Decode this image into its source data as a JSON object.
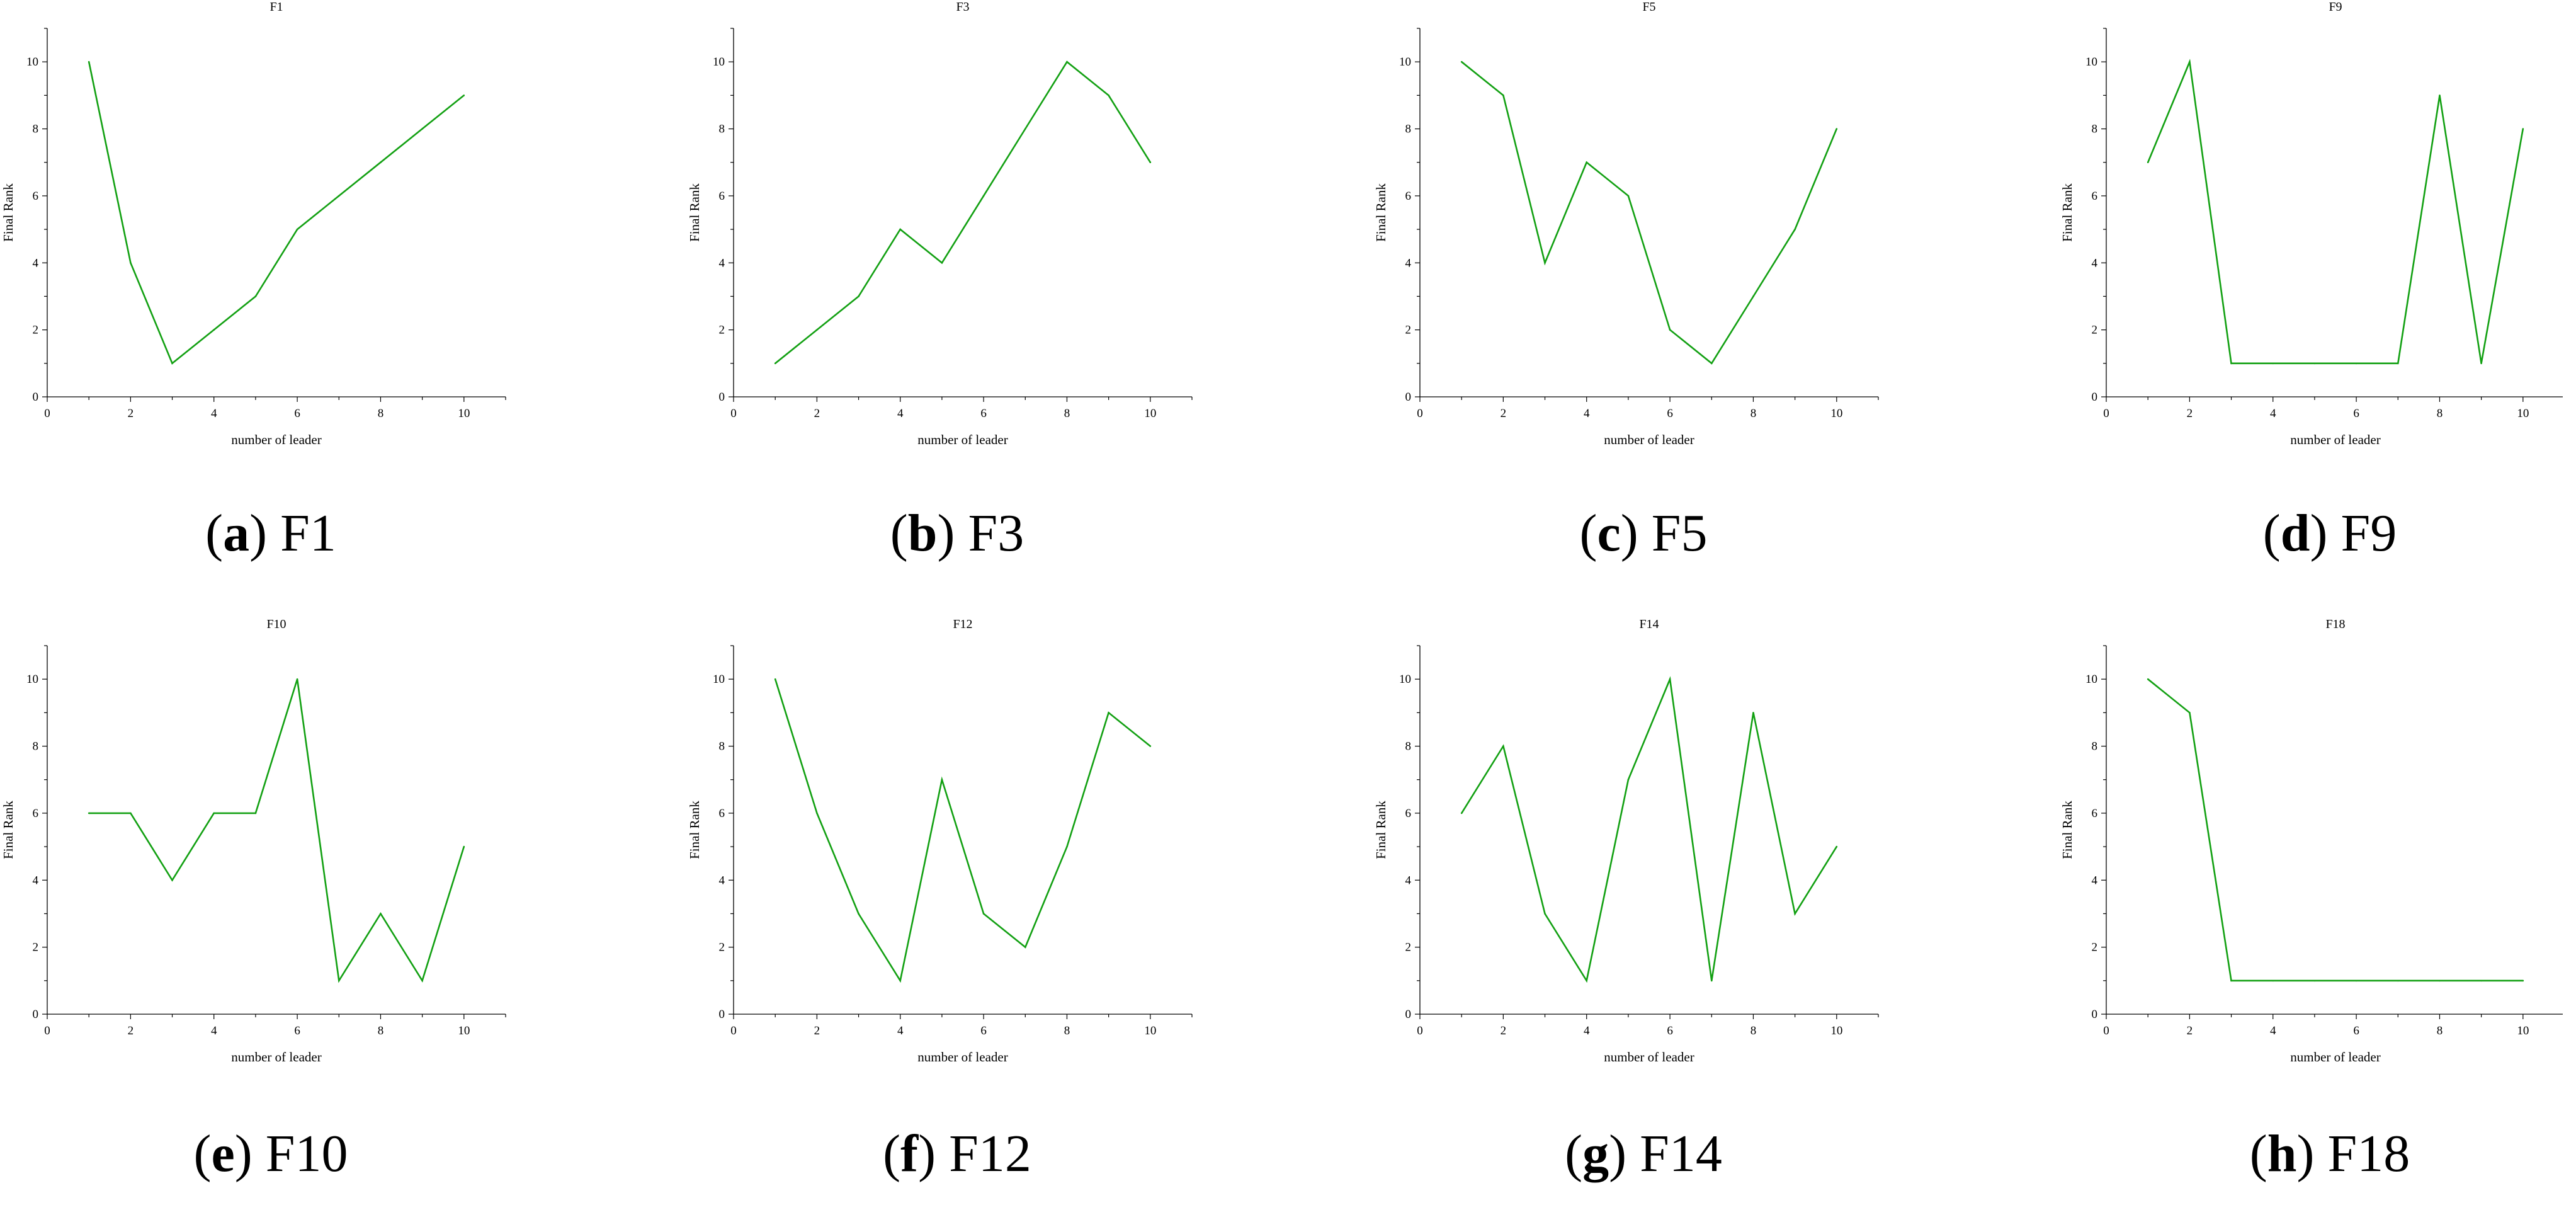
{
  "figure": {
    "panels": [
      {
        "letter": "a",
        "caption_title": "F1"
      },
      {
        "letter": "b",
        "caption_title": "F3"
      },
      {
        "letter": "c",
        "caption_title": "F5"
      },
      {
        "letter": "d",
        "caption_title": "F9"
      },
      {
        "letter": "e",
        "caption_title": "F10"
      },
      {
        "letter": "f",
        "caption_title": "F12"
      },
      {
        "letter": "g",
        "caption_title": "F14"
      },
      {
        "letter": "h",
        "caption_title": "F18"
      }
    ]
  },
  "colors": {
    "line": "#12a012",
    "axis": "#000000"
  },
  "chart_data": [
    {
      "type": "line",
      "title": "F1",
      "xlabel": "number of leader",
      "ylabel": "Final Rank",
      "xlim": [
        0,
        11
      ],
      "ylim": [
        0,
        11
      ],
      "xticks": [
        0,
        2,
        4,
        6,
        8,
        10
      ],
      "yticks": [
        0,
        2,
        4,
        6,
        8,
        10
      ],
      "x": [
        1,
        2,
        3,
        4,
        5,
        6,
        7,
        8,
        9,
        10
      ],
      "y": [
        10,
        4,
        1,
        2,
        3,
        5,
        6,
        7,
        8,
        9
      ]
    },
    {
      "type": "line",
      "title": "F3",
      "xlabel": "number of leader",
      "ylabel": "Final Rank",
      "xlim": [
        0,
        11
      ],
      "ylim": [
        0,
        11
      ],
      "xticks": [
        0,
        2,
        4,
        6,
        8,
        10
      ],
      "yticks": [
        0,
        2,
        4,
        6,
        8,
        10
      ],
      "x": [
        1,
        2,
        3,
        4,
        5,
        6,
        7,
        8,
        9,
        10
      ],
      "y": [
        1,
        2,
        3,
        5,
        4,
        6,
        8,
        10,
        9,
        7
      ]
    },
    {
      "type": "line",
      "title": "F5",
      "xlabel": "number of leader",
      "ylabel": "Final Rank",
      "xlim": [
        0,
        11
      ],
      "ylim": [
        0,
        11
      ],
      "xticks": [
        0,
        2,
        4,
        6,
        8,
        10
      ],
      "yticks": [
        0,
        2,
        4,
        6,
        8,
        10
      ],
      "x": [
        1,
        2,
        3,
        4,
        5,
        6,
        7,
        8,
        9,
        10
      ],
      "y": [
        10,
        9,
        4,
        7,
        6,
        2,
        1,
        3,
        5,
        8
      ]
    },
    {
      "type": "line",
      "title": "F9",
      "xlabel": "number of leader",
      "ylabel": "Final Rank",
      "xlim": [
        0,
        11
      ],
      "ylim": [
        0,
        11
      ],
      "xticks": [
        0,
        2,
        4,
        6,
        8,
        10
      ],
      "yticks": [
        0,
        2,
        4,
        6,
        8,
        10
      ],
      "x": [
        1,
        2,
        3,
        4,
        5,
        6,
        7,
        8,
        9,
        10
      ],
      "y": [
        7,
        10,
        1,
        1,
        1,
        1,
        1,
        9,
        1,
        8
      ]
    },
    {
      "type": "line",
      "title": "F10",
      "xlabel": "number of leader",
      "ylabel": "Final Rank",
      "xlim": [
        0,
        11
      ],
      "ylim": [
        0,
        11
      ],
      "xticks": [
        0,
        2,
        4,
        6,
        8,
        10
      ],
      "yticks": [
        0,
        2,
        4,
        6,
        8,
        10
      ],
      "x": [
        1,
        2,
        3,
        4,
        5,
        6,
        7,
        8,
        9,
        10
      ],
      "y": [
        6,
        6,
        4,
        6,
        6,
        10,
        1,
        3,
        1,
        5
      ]
    },
    {
      "type": "line",
      "title": "F12",
      "xlabel": "number of leader",
      "ylabel": "Final Rank",
      "xlim": [
        0,
        11
      ],
      "ylim": [
        0,
        11
      ],
      "xticks": [
        0,
        2,
        4,
        6,
        8,
        10
      ],
      "yticks": [
        0,
        2,
        4,
        6,
        8,
        10
      ],
      "x": [
        1,
        2,
        3,
        4,
        5,
        6,
        7,
        8,
        9,
        10
      ],
      "y": [
        10,
        6,
        3,
        1,
        7,
        3,
        2,
        5,
        9,
        8
      ]
    },
    {
      "type": "line",
      "title": "F14",
      "xlabel": "number of leader",
      "ylabel": "Final Rank",
      "xlim": [
        0,
        11
      ],
      "ylim": [
        0,
        11
      ],
      "xticks": [
        0,
        2,
        4,
        6,
        8,
        10
      ],
      "yticks": [
        0,
        2,
        4,
        6,
        8,
        10
      ],
      "x": [
        1,
        2,
        3,
        4,
        5,
        6,
        7,
        8,
        9,
        10
      ],
      "y": [
        6,
        8,
        3,
        1,
        7,
        10,
        1,
        9,
        3,
        5
      ]
    },
    {
      "type": "line",
      "title": "F18",
      "xlabel": "number of leader",
      "ylabel": "Final Rank",
      "xlim": [
        0,
        11
      ],
      "ylim": [
        0,
        11
      ],
      "xticks": [
        0,
        2,
        4,
        6,
        8,
        10
      ],
      "yticks": [
        0,
        2,
        4,
        6,
        8,
        10
      ],
      "x": [
        1,
        2,
        3,
        4,
        5,
        6,
        7,
        8,
        9,
        10
      ],
      "y": [
        10,
        9,
        1,
        1,
        1,
        1,
        1,
        1,
        1,
        1
      ]
    }
  ]
}
